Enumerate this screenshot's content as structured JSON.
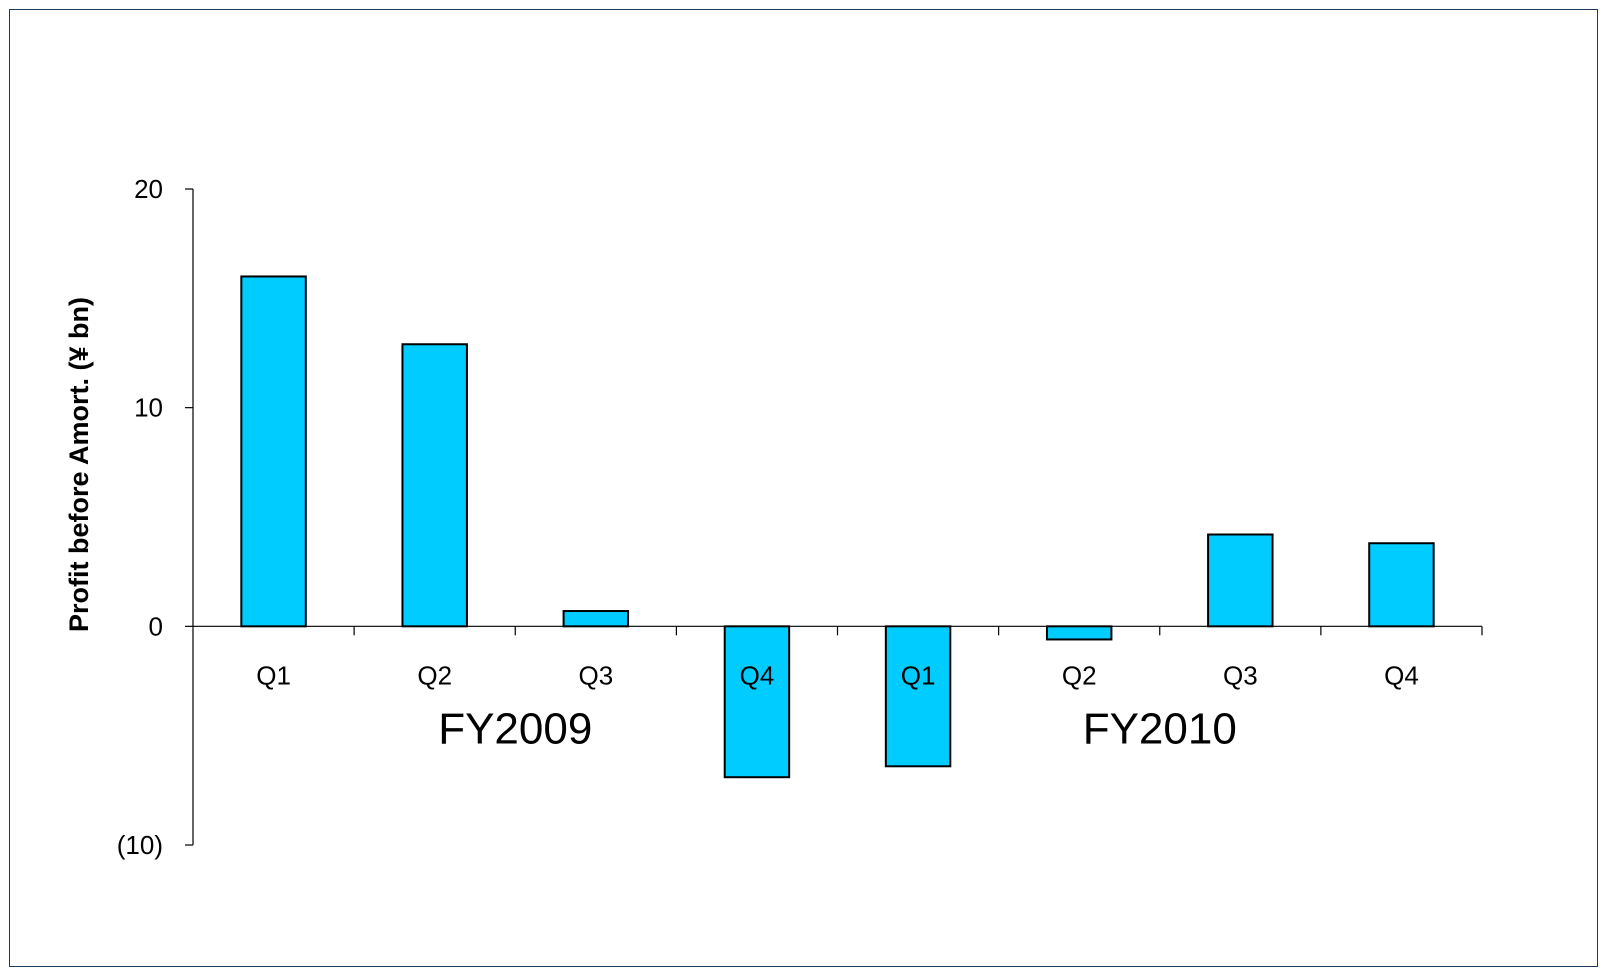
{
  "chart_data": {
    "type": "bar",
    "title": "",
    "xlabel": "",
    "ylabel": "Profit before Amort. (¥ bn)",
    "ylim": [
      -10,
      20
    ],
    "yticks": [
      {
        "value": 20,
        "label": "20"
      },
      {
        "value": 10,
        "label": "10"
      },
      {
        "value": 0,
        "label": "0"
      },
      {
        "value": -10,
        "label": "(10)"
      }
    ],
    "categories": [
      "Q1",
      "Q2",
      "Q3",
      "Q4",
      "Q1",
      "Q2",
      "Q3",
      "Q4"
    ],
    "groups": [
      {
        "label": "FY2009",
        "categories": [
          "Q1",
          "Q2",
          "Q3",
          "Q4"
        ]
      },
      {
        "label": "FY2010",
        "categories": [
          "Q1",
          "Q2",
          "Q3",
          "Q4"
        ]
      }
    ],
    "values": [
      16.0,
      12.9,
      0.7,
      -6.9,
      -6.4,
      -0.6,
      4.2,
      3.8
    ],
    "colors": {
      "bar_fill": "#00ccff",
      "bar_stroke": "#000000",
      "axis": "#000000",
      "frame": "#1f3a5f"
    },
    "grid": false,
    "legend": "none"
  }
}
